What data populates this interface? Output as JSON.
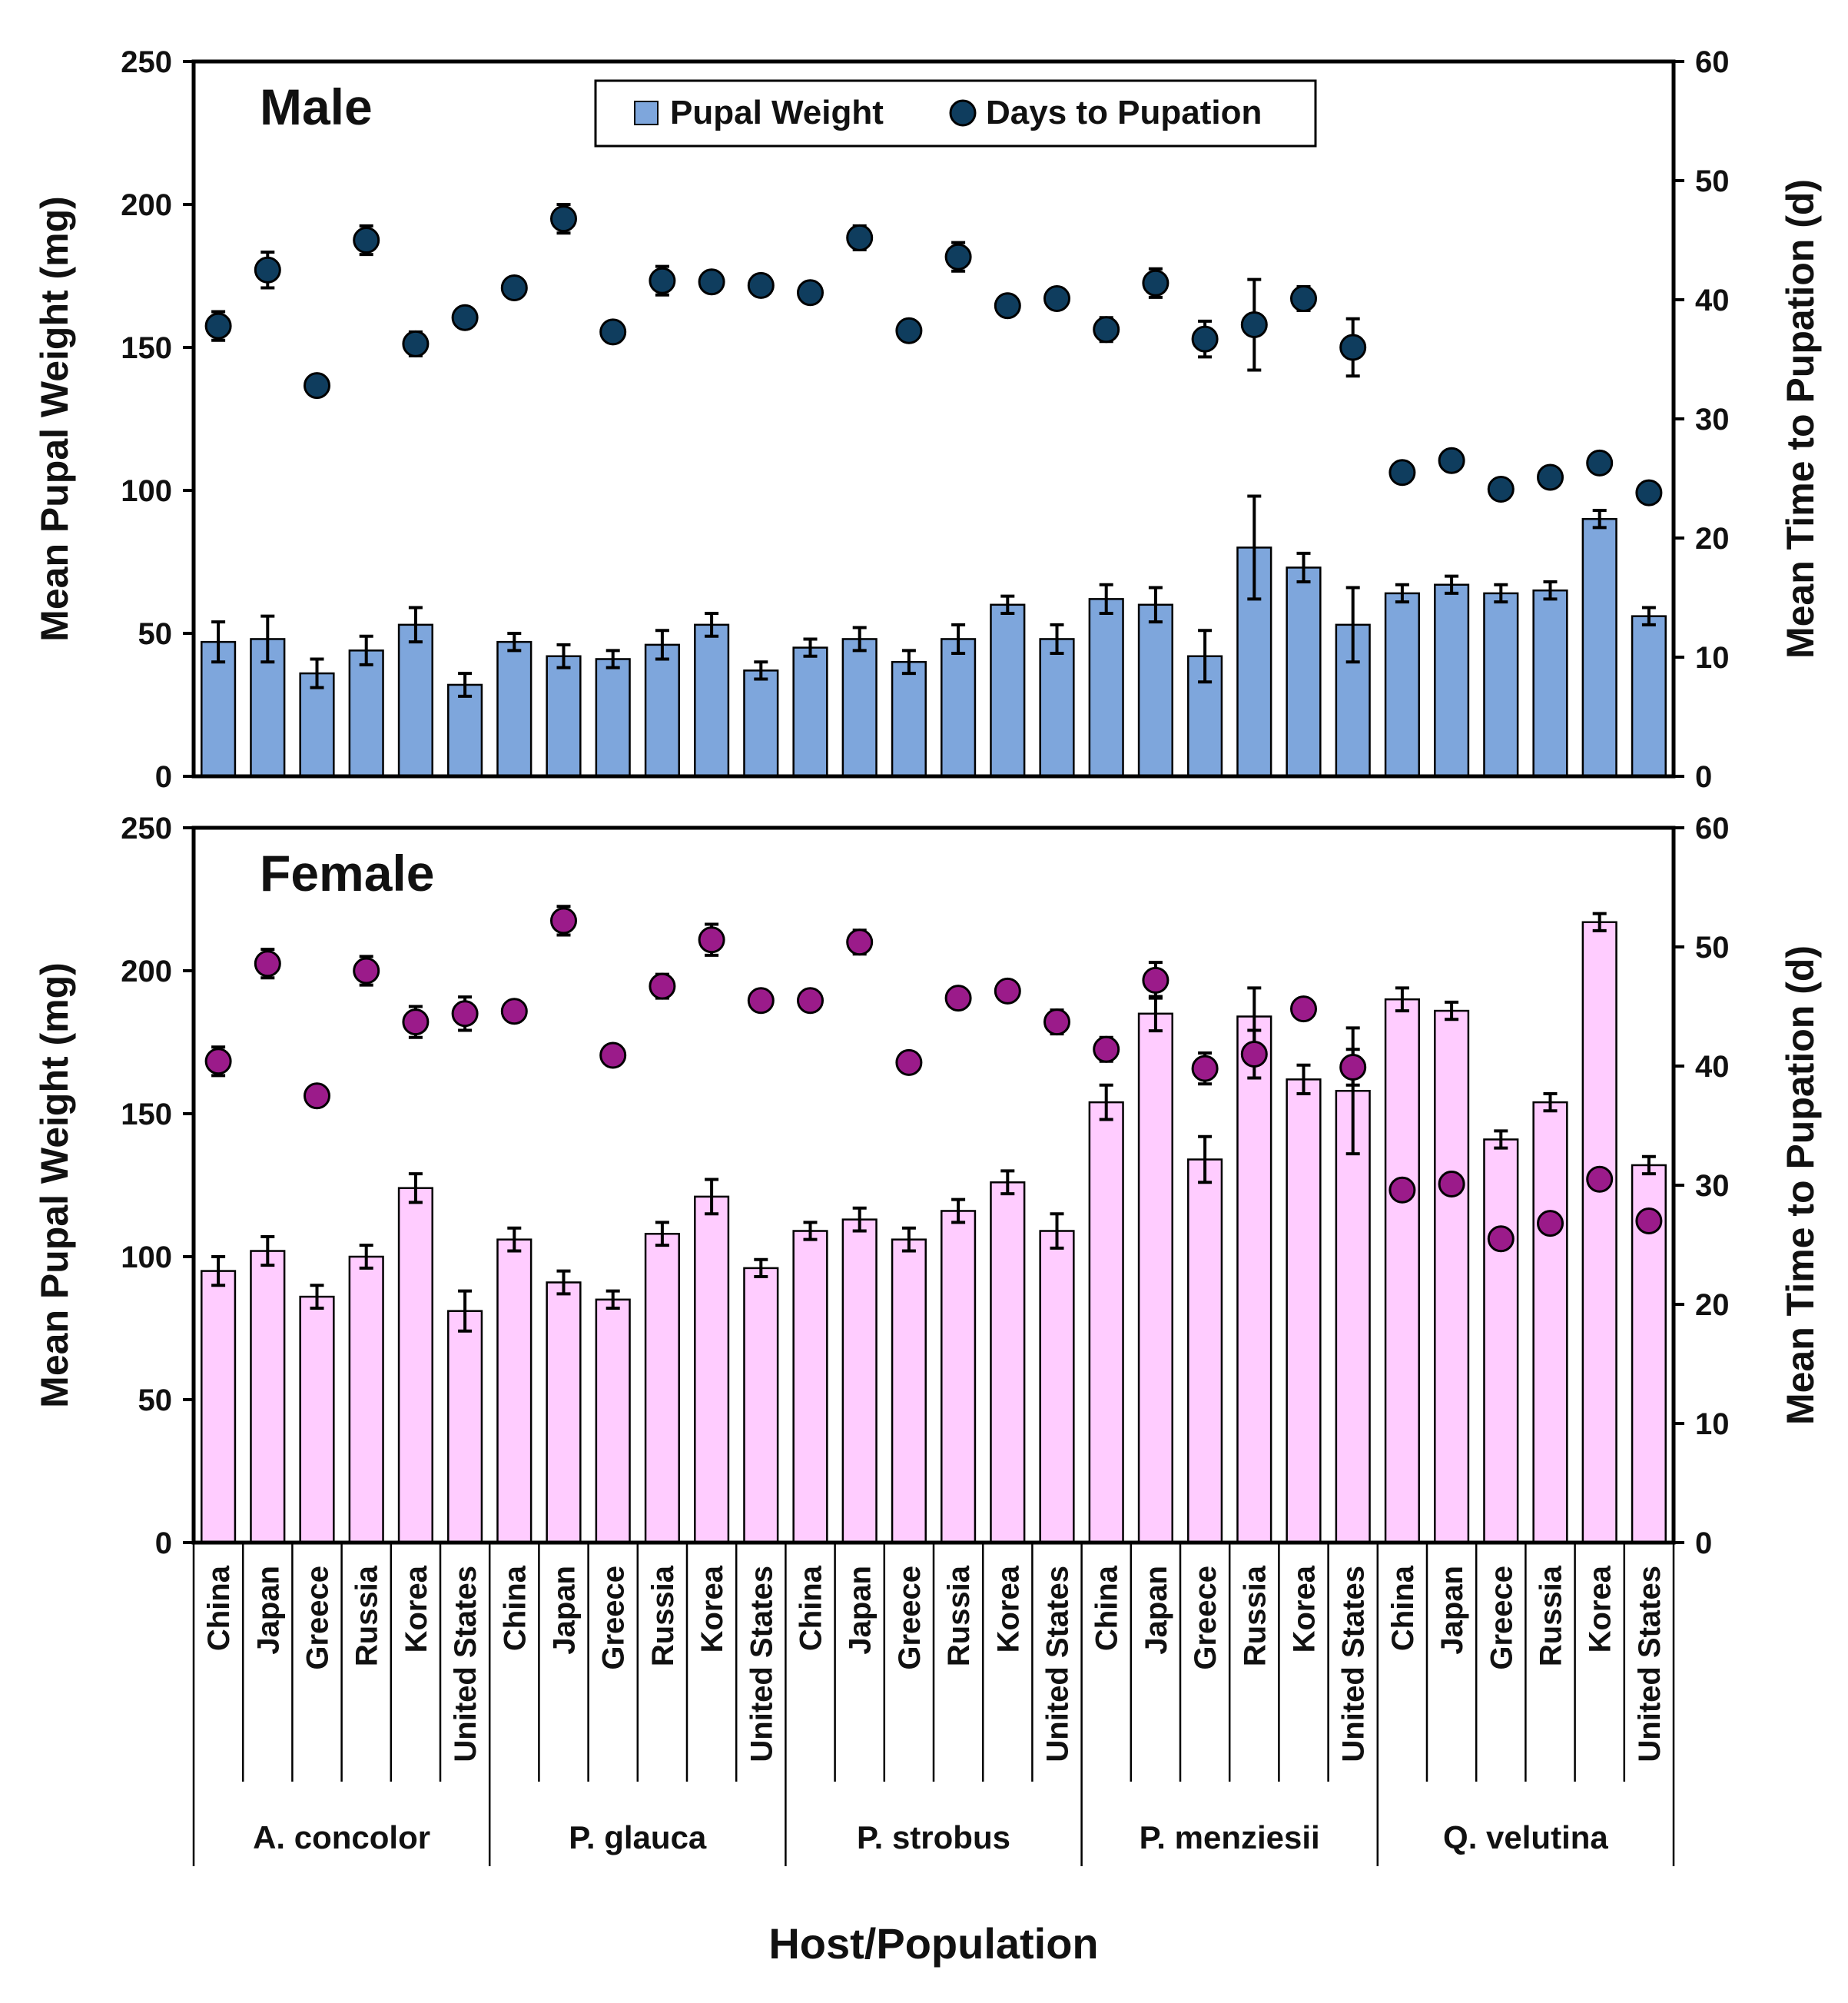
{
  "chart_data": {
    "type": "bar",
    "xlabel": "Host/Population",
    "populations": [
      "China",
      "Japan",
      "Greece",
      "Russia",
      "Korea",
      "United States"
    ],
    "hosts": [
      "A. concolor",
      "P. glauca",
      "P. strobus",
      "P. menziesii",
      "Q. velutina"
    ],
    "legend": {
      "bar_label": "Pupal Weight",
      "dot_label": "Days to Pupation",
      "position": "top-center"
    },
    "colors": {
      "male_bar": "#7ea6dc",
      "male_dot": "#0f3d5e",
      "female_bar": "#ffccff",
      "female_dot": "#9b1b8a",
      "axis": "#000000"
    },
    "left_axis": {
      "label": "Mean Pupal Weight (mg)",
      "range": [
        0,
        250
      ],
      "ticks": [
        0,
        50,
        100,
        150,
        200,
        250
      ]
    },
    "right_axis": {
      "label": "Mean Time to Pupation (d)",
      "range": [
        0,
        60
      ],
      "ticks": [
        0,
        10,
        20,
        30,
        40,
        50,
        60
      ]
    },
    "panels": [
      {
        "title": "Male",
        "weight": [
          47,
          48,
          36,
          44,
          53,
          32,
          47,
          42,
          41,
          46,
          53,
          37,
          45,
          48,
          40,
          48,
          60,
          48,
          62,
          60,
          42,
          80,
          73,
          53,
          64,
          67,
          64,
          65,
          90,
          56
        ],
        "weight_err": [
          7,
          8,
          5,
          5,
          6,
          4,
          3,
          4,
          3,
          5,
          4,
          3,
          3,
          4,
          4,
          5,
          3,
          5,
          5,
          6,
          9,
          18,
          5,
          13,
          3,
          3,
          3,
          3,
          3,
          3
        ],
        "days": [
          37.8,
          42.5,
          32.8,
          45.0,
          36.3,
          38.5,
          41.0,
          46.8,
          37.3,
          41.6,
          41.5,
          41.2,
          40.6,
          45.2,
          37.4,
          43.6,
          39.5,
          40.1,
          37.5,
          41.4,
          36.7,
          37.9,
          40.1,
          36.0,
          25.5,
          26.5,
          24.1,
          25.1,
          26.3,
          23.8
        ],
        "days_err": [
          1.2,
          1.5,
          0,
          1.2,
          1.0,
          0,
          0,
          1.2,
          0,
          1.2,
          0,
          0,
          0,
          1.0,
          0,
          1.2,
          0,
          0,
          1.0,
          1.2,
          1.5,
          3.8,
          1.0,
          2.4,
          0,
          0,
          0,
          0,
          0,
          0
        ]
      },
      {
        "title": "Female",
        "weight": [
          95,
          102,
          86,
          100,
          124,
          81,
          106,
          91,
          85,
          108,
          121,
          96,
          109,
          113,
          106,
          116,
          126,
          109,
          154,
          185,
          134,
          184,
          162,
          158,
          190,
          186,
          141,
          154,
          217,
          132
        ],
        "weight_err": [
          5,
          5,
          4,
          4,
          5,
          7,
          4,
          4,
          3,
          4,
          6,
          3,
          3,
          4,
          4,
          4,
          4,
          6,
          6,
          6,
          8,
          10,
          5,
          22,
          4,
          3,
          3,
          3,
          3,
          3
        ],
        "days": [
          40.4,
          48.6,
          37.5,
          48.0,
          43.7,
          44.4,
          44.6,
          52.2,
          40.9,
          46.7,
          50.6,
          45.5,
          45.5,
          50.4,
          40.3,
          45.7,
          46.3,
          43.7,
          41.4,
          47.2,
          39.8,
          41.0,
          44.8,
          39.9,
          29.6,
          30.1,
          25.5,
          26.8,
          30.5,
          27.0
        ],
        "days_err": [
          1.2,
          1.2,
          0,
          1.2,
          1.3,
          1.4,
          0,
          1.2,
          0,
          1.0,
          1.3,
          0,
          0,
          1.0,
          0,
          0,
          0,
          1.0,
          1.0,
          1.5,
          1.3,
          2.0,
          0.8,
          1.5,
          0,
          0,
          0,
          0,
          0,
          0
        ]
      }
    ]
  }
}
